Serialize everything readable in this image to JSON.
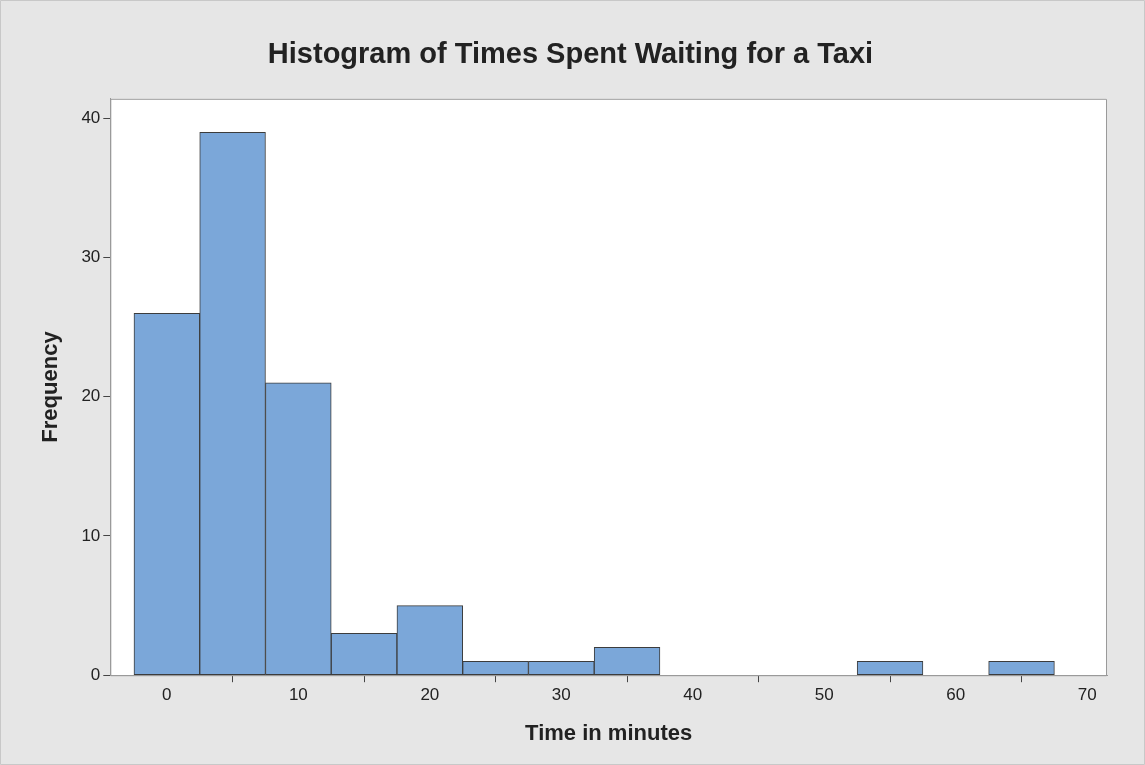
{
  "chart_data": {
    "type": "histogram",
    "title": "Histogram of Times Spent Waiting for a Taxi",
    "xlabel": "Time in minutes",
    "ylabel": "Frequency",
    "bins": [
      -2.5,
      2.5,
      7.5,
      12.5,
      17.5,
      22.5,
      27.5,
      32.5,
      37.5,
      42.5,
      47.5,
      52.5,
      57.5,
      62.5,
      67.5
    ],
    "values": [
      26,
      39,
      21,
      3,
      5,
      1,
      1,
      2,
      0,
      0,
      0,
      1,
      0,
      1
    ],
    "color": "#7ba7d9",
    "xlim": [
      -4.3,
      71.5
    ],
    "xticks": [
      0,
      10,
      20,
      30,
      40,
      50,
      60,
      70
    ],
    "ylim": [
      0,
      41.4
    ],
    "yticks": [
      0,
      10,
      20,
      30,
      40
    ],
    "grid": false,
    "legend": false
  }
}
